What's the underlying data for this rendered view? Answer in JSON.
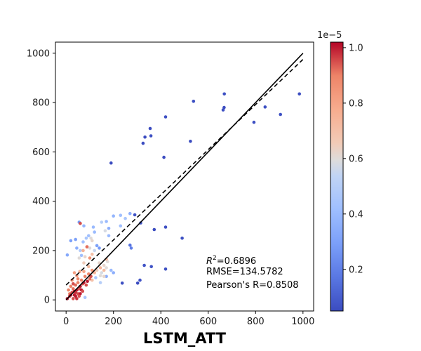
{
  "chart_data": {
    "type": "scatter",
    "xlabel": "LSTM_ATT",
    "ylabel": "",
    "xlim": [
      -45,
      1045
    ],
    "ylim": [
      -45,
      1045
    ],
    "xticks": [
      "0",
      "200",
      "400",
      "600",
      "800",
      "1000"
    ],
    "yticks": [
      "0",
      "200",
      "400",
      "600",
      "800",
      "1000"
    ],
    "grid": false,
    "annotation": {
      "r2_prefix": "R",
      "r2_sup": "2",
      "r2_value": "=0.6896",
      "rmse": "RMSE=134.5782",
      "pearson": "Pearson's R=0.8508"
    },
    "colorbar": {
      "cmap": "coolwarm",
      "range": [
        0.05,
        1.02
      ],
      "offset_label": "1e−5",
      "ticks": [
        "0.2",
        "0.4",
        "0.6",
        "0.8",
        "1.0"
      ]
    },
    "lines": [
      {
        "style": "solid",
        "color": "#000000",
        "x": [
          0,
          1000
        ],
        "y": [
          0,
          1000
        ]
      },
      {
        "style": "dashed",
        "color": "#000000",
        "x": [
          0,
          1000
        ],
        "y": [
          60,
          975
        ]
      }
    ],
    "points": [
      [
        190,
        555,
        0.05
      ],
      [
        325,
        635,
        0.05
      ],
      [
        333,
        660,
        0.05
      ],
      [
        358,
        665,
        0.06
      ],
      [
        355,
        695,
        0.05
      ],
      [
        413,
        578,
        0.05
      ],
      [
        420,
        742,
        0.06
      ],
      [
        525,
        643,
        0.05
      ],
      [
        538,
        805,
        0.06
      ],
      [
        663,
        770,
        0.06
      ],
      [
        667,
        780,
        0.05
      ],
      [
        668,
        835,
        0.06
      ],
      [
        793,
        720,
        0.06
      ],
      [
        840,
        782,
        0.06
      ],
      [
        905,
        752,
        0.06
      ],
      [
        985,
        835,
        0.05
      ],
      [
        490,
        250,
        0.06
      ],
      [
        420,
        295,
        0.06
      ],
      [
        372,
        285,
        0.05
      ],
      [
        290,
        345,
        0.07
      ],
      [
        315,
        312,
        0.09
      ],
      [
        330,
        140,
        0.07
      ],
      [
        360,
        135,
        0.07
      ],
      [
        420,
        125,
        0.06
      ],
      [
        237,
        68,
        0.06
      ],
      [
        302,
        68,
        0.05
      ],
      [
        312,
        80,
        0.07
      ],
      [
        270,
        222,
        0.16
      ],
      [
        275,
        210,
        0.2
      ],
      [
        55,
        315,
        0.28
      ],
      [
        75,
        300,
        0.38
      ],
      [
        115,
        295,
        0.4
      ],
      [
        170,
        318,
        0.4
      ],
      [
        150,
        315,
        0.5
      ],
      [
        200,
        340,
        0.38
      ],
      [
        230,
        343,
        0.42
      ],
      [
        270,
        350,
        0.35
      ],
      [
        250,
        330,
        0.45
      ],
      [
        230,
        300,
        0.42
      ],
      [
        180,
        290,
        0.35
      ],
      [
        120,
        275,
        0.4
      ],
      [
        95,
        260,
        0.42
      ],
      [
        85,
        250,
        0.45
      ],
      [
        72,
        235,
        0.42
      ],
      [
        40,
        245,
        0.3
      ],
      [
        20,
        240,
        0.3
      ],
      [
        5,
        182,
        0.33
      ],
      [
        45,
        210,
        0.35
      ],
      [
        60,
        200,
        0.48
      ],
      [
        65,
        180,
        0.42
      ],
      [
        130,
        220,
        0.3
      ],
      [
        140,
        210,
        0.28
      ],
      [
        180,
        260,
        0.4
      ],
      [
        200,
        110,
        0.35
      ],
      [
        190,
        120,
        0.4
      ],
      [
        145,
        70,
        0.5
      ],
      [
        170,
        95,
        0.35
      ],
      [
        125,
        90,
        0.45
      ],
      [
        80,
        10,
        0.45
      ],
      [
        90,
        215,
        0.62
      ],
      [
        100,
        210,
        0.6
      ],
      [
        105,
        250,
        0.6
      ],
      [
        110,
        240,
        0.62
      ],
      [
        80,
        175,
        0.62
      ],
      [
        75,
        150,
        0.65
      ],
      [
        55,
        170,
        0.6
      ],
      [
        160,
        140,
        0.62
      ],
      [
        170,
        130,
        0.6
      ],
      [
        150,
        110,
        0.58
      ],
      [
        140,
        150,
        0.62
      ],
      [
        130,
        120,
        0.65
      ],
      [
        145,
        98,
        0.6
      ],
      [
        160,
        95,
        0.62
      ],
      [
        110,
        80,
        0.7
      ],
      [
        175,
        155,
        0.6
      ],
      [
        165,
        280,
        0.58
      ],
      [
        120,
        200,
        0.55
      ],
      [
        15,
        25,
        0.9
      ],
      [
        20,
        20,
        1.0
      ],
      [
        25,
        30,
        0.95
      ],
      [
        35,
        20,
        1.0
      ],
      [
        40,
        30,
        0.98
      ],
      [
        30,
        45,
        0.92
      ],
      [
        45,
        40,
        1.0
      ],
      [
        55,
        45,
        0.95
      ],
      [
        60,
        55,
        1.0
      ],
      [
        70,
        65,
        0.95
      ],
      [
        65,
        80,
        0.9
      ],
      [
        75,
        70,
        1.0
      ],
      [
        85,
        60,
        0.95
      ],
      [
        90,
        75,
        1.0
      ],
      [
        100,
        85,
        0.92
      ],
      [
        95,
        105,
        0.88
      ],
      [
        105,
        95,
        0.95
      ],
      [
        110,
        120,
        0.85
      ],
      [
        80,
        95,
        0.9
      ],
      [
        50,
        70,
        0.9
      ],
      [
        40,
        60,
        0.92
      ],
      [
        30,
        65,
        0.95
      ],
      [
        20,
        55,
        0.9
      ],
      [
        25,
        80,
        0.85
      ],
      [
        10,
        40,
        0.9
      ],
      [
        50,
        25,
        0.95
      ],
      [
        60,
        25,
        1.0
      ],
      [
        40,
        15,
        1.0
      ],
      [
        30,
        5,
        0.95
      ],
      [
        45,
        5,
        0.98
      ],
      [
        35,
        35,
        0.98
      ],
      [
        55,
        15,
        0.95
      ],
      [
        65,
        40,
        1.0
      ],
      [
        70,
        35,
        0.95
      ],
      [
        15,
        15,
        0.98
      ],
      [
        5,
        5,
        1.0
      ],
      [
        60,
        310,
        0.95
      ],
      [
        88,
        215,
        0.92
      ],
      [
        100,
        170,
        0.85
      ],
      [
        75,
        115,
        0.8
      ],
      [
        120,
        110,
        0.75
      ],
      [
        58,
        115,
        0.78
      ],
      [
        95,
        135,
        0.72
      ],
      [
        110,
        185,
        0.7
      ],
      [
        160,
        120,
        0.72
      ],
      [
        170,
        165,
        0.72
      ],
      [
        145,
        130,
        0.75
      ],
      [
        72,
        200,
        0.75
      ],
      [
        45,
        98,
        0.85
      ],
      [
        35,
        110,
        0.82
      ],
      [
        50,
        85,
        0.88
      ]
    ]
  }
}
